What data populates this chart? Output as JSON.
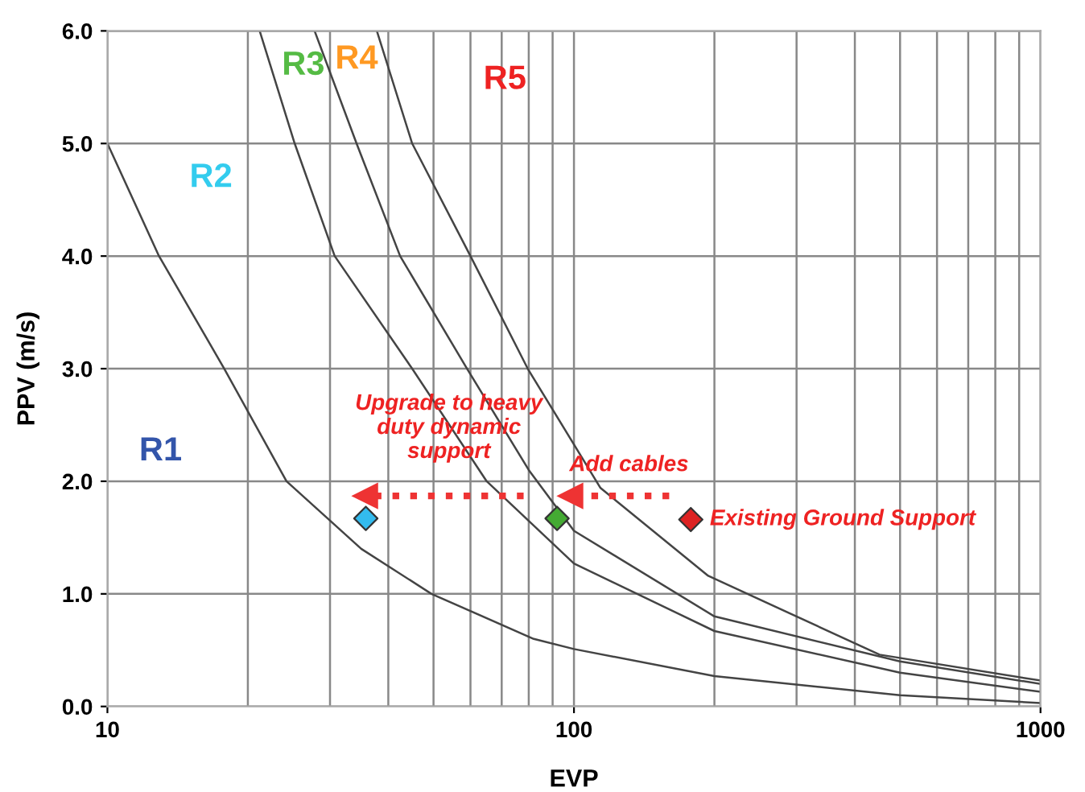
{
  "chart_data": {
    "type": "line",
    "xlabel": "EVP",
    "ylabel": "PPV (m/s)",
    "log": "x",
    "xlim": [
      10,
      1000
    ],
    "ylim": [
      0,
      6
    ],
    "xticks": [
      10,
      {
        "value": 20,
        "label": null
      },
      {
        "value": 30,
        "label": null
      },
      {
        "value": 40,
        "label": null
      },
      {
        "value": 50,
        "label": null
      },
      {
        "value": 60,
        "label": null
      },
      {
        "value": 70,
        "label": null
      },
      {
        "value": 80,
        "label": null
      },
      {
        "value": 90,
        "label": null
      },
      100,
      {
        "value": 200,
        "label": null
      },
      {
        "value": 300,
        "label": null
      },
      {
        "value": 400,
        "label": null
      },
      {
        "value": 500,
        "label": null
      },
      {
        "value": 600,
        "label": null
      },
      {
        "value": 700,
        "label": null
      },
      {
        "value": 800,
        "label": null
      },
      {
        "value": 900,
        "label": null
      },
      1000
    ],
    "yticks": [
      {
        "value": 0,
        "label": "0.0"
      },
      {
        "value": 1,
        "label": "1.0"
      },
      {
        "value": 2,
        "label": "2.0"
      },
      {
        "value": 3,
        "label": "3.0"
      },
      {
        "value": 4,
        "label": "4.0"
      },
      {
        "value": 5,
        "label": "5.0"
      },
      {
        "value": 6,
        "label": "6.0"
      }
    ],
    "grid": true,
    "marker": "none",
    "line_style": "solid",
    "series": [
      {
        "color": "#444444",
        "x": [
          10,
          12.9,
          17.8,
          24.2,
          35,
          49.5,
          82,
          100,
          200,
          500,
          1000
        ],
        "values": [
          5,
          4,
          3,
          2,
          1.4,
          1,
          0.6,
          0.51,
          0.27,
          0.1,
          0.03
        ]
      },
      {
        "color": "#444444",
        "x": [
          21.2,
          25.2,
          30.7,
          45,
          65,
          100,
          200,
          500,
          1000
        ],
        "values": [
          6,
          5,
          4,
          3,
          2,
          1.27,
          0.67,
          0.3,
          0.13
        ]
      },
      {
        "color": "#444444",
        "x": [
          27.8,
          34.2,
          42.4,
          59,
          80,
          100,
          200,
          500,
          1000
        ],
        "values": [
          6,
          5,
          4,
          3,
          2.1,
          1.56,
          0.8,
          0.4,
          0.2
        ]
      },
      {
        "color": "#444444",
        "x": [
          37.8,
          45,
          60,
          79.6,
          114,
          194,
          452,
          1000
        ],
        "values": [
          6,
          5,
          4,
          3,
          1.94,
          1.16,
          0.46,
          0.23
        ]
      },
      {
        "type": "scatter",
        "marker": "diamond",
        "x": [
          35.8,
          92,
          178
        ],
        "values": [
          1.67,
          1.67,
          1.66
        ],
        "colors": [
          "#33bbee",
          "#44aa33",
          "#dd2222"
        ]
      },
      {
        "type": "line",
        "line_style": "dotted",
        "marker": "triangle",
        "color": "#ee3333",
        "x": [
          78,
          35.6
        ],
        "values": [
          1.87,
          1.87
        ]
      },
      {
        "type": "line",
        "line_style": "dotted",
        "marker": "triangle",
        "color": "#ee3333",
        "x": [
          160,
          98
        ],
        "values": [
          1.87,
          1.87
        ]
      }
    ],
    "annotations": [
      "R1",
      "R2",
      "R3",
      "R4",
      "R5",
      "Upgrade to heavy\nduty dynamic\nsupport",
      "Add cables",
      "Existing Ground Support"
    ]
  }
}
